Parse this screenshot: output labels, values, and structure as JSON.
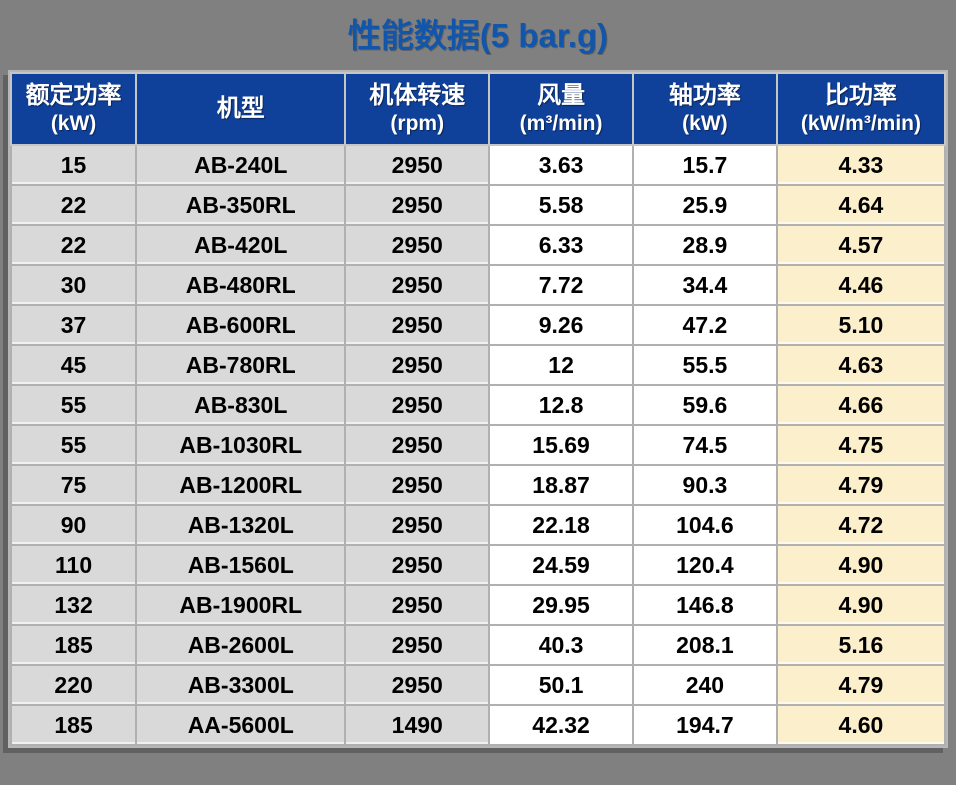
{
  "page": {
    "title": "性能数据(5 bar.g)",
    "background_color": "#808080",
    "title_color": "#1256AB"
  },
  "table": {
    "header_bg": "#10419A",
    "header_text_color": "#FFFFFF",
    "column_bg_gray": "#D9D9D9",
    "column_bg_white": "#FFFFFF",
    "column_bg_cream": "#FCF0CC",
    "columns": [
      {
        "label": "额定功率",
        "unit": "(kW)",
        "bg": "#D9D9D9"
      },
      {
        "label": "机型",
        "unit": "",
        "bg": "#D9D9D9"
      },
      {
        "label": "机体转速",
        "unit": "(rpm)",
        "bg": "#D9D9D9"
      },
      {
        "label": "风量",
        "unit": "(m³/min)",
        "bg": "#FFFFFF"
      },
      {
        "label": "轴功率",
        "unit": "(kW)",
        "bg": "#FFFFFF"
      },
      {
        "label": "比功率",
        "unit": "(kW/m³/min)",
        "bg": "#FCF0CC"
      }
    ],
    "rows": [
      [
        "15",
        "AB-240L",
        "2950",
        "3.63",
        "15.7",
        "4.33"
      ],
      [
        "22",
        "AB-350RL",
        "2950",
        "5.58",
        "25.9",
        "4.64"
      ],
      [
        "22",
        "AB-420L",
        "2950",
        "6.33",
        "28.9",
        "4.57"
      ],
      [
        "30",
        "AB-480RL",
        "2950",
        "7.72",
        "34.4",
        "4.46"
      ],
      [
        "37",
        "AB-600RL",
        "2950",
        "9.26",
        "47.2",
        "5.10"
      ],
      [
        "45",
        "AB-780RL",
        "2950",
        "12",
        "55.5",
        "4.63"
      ],
      [
        "55",
        "AB-830L",
        "2950",
        "12.8",
        "59.6",
        "4.66"
      ],
      [
        "55",
        "AB-1030RL",
        "2950",
        "15.69",
        "74.5",
        "4.75"
      ],
      [
        "75",
        "AB-1200RL",
        "2950",
        "18.87",
        "90.3",
        "4.79"
      ],
      [
        "90",
        "AB-1320L",
        "2950",
        "22.18",
        "104.6",
        "4.72"
      ],
      [
        "110",
        "AB-1560L",
        "2950",
        "24.59",
        "120.4",
        "4.90"
      ],
      [
        "132",
        "AB-1900RL",
        "2950",
        "29.95",
        "146.8",
        "4.90"
      ],
      [
        "185",
        "AB-2600L",
        "2950",
        "40.3",
        "208.1",
        "5.16"
      ],
      [
        "220",
        "AB-3300L",
        "2950",
        "50.1",
        "240",
        "4.79"
      ],
      [
        "185",
        "AA-5600L",
        "1490",
        "42.32",
        "194.7",
        "4.60"
      ]
    ]
  }
}
